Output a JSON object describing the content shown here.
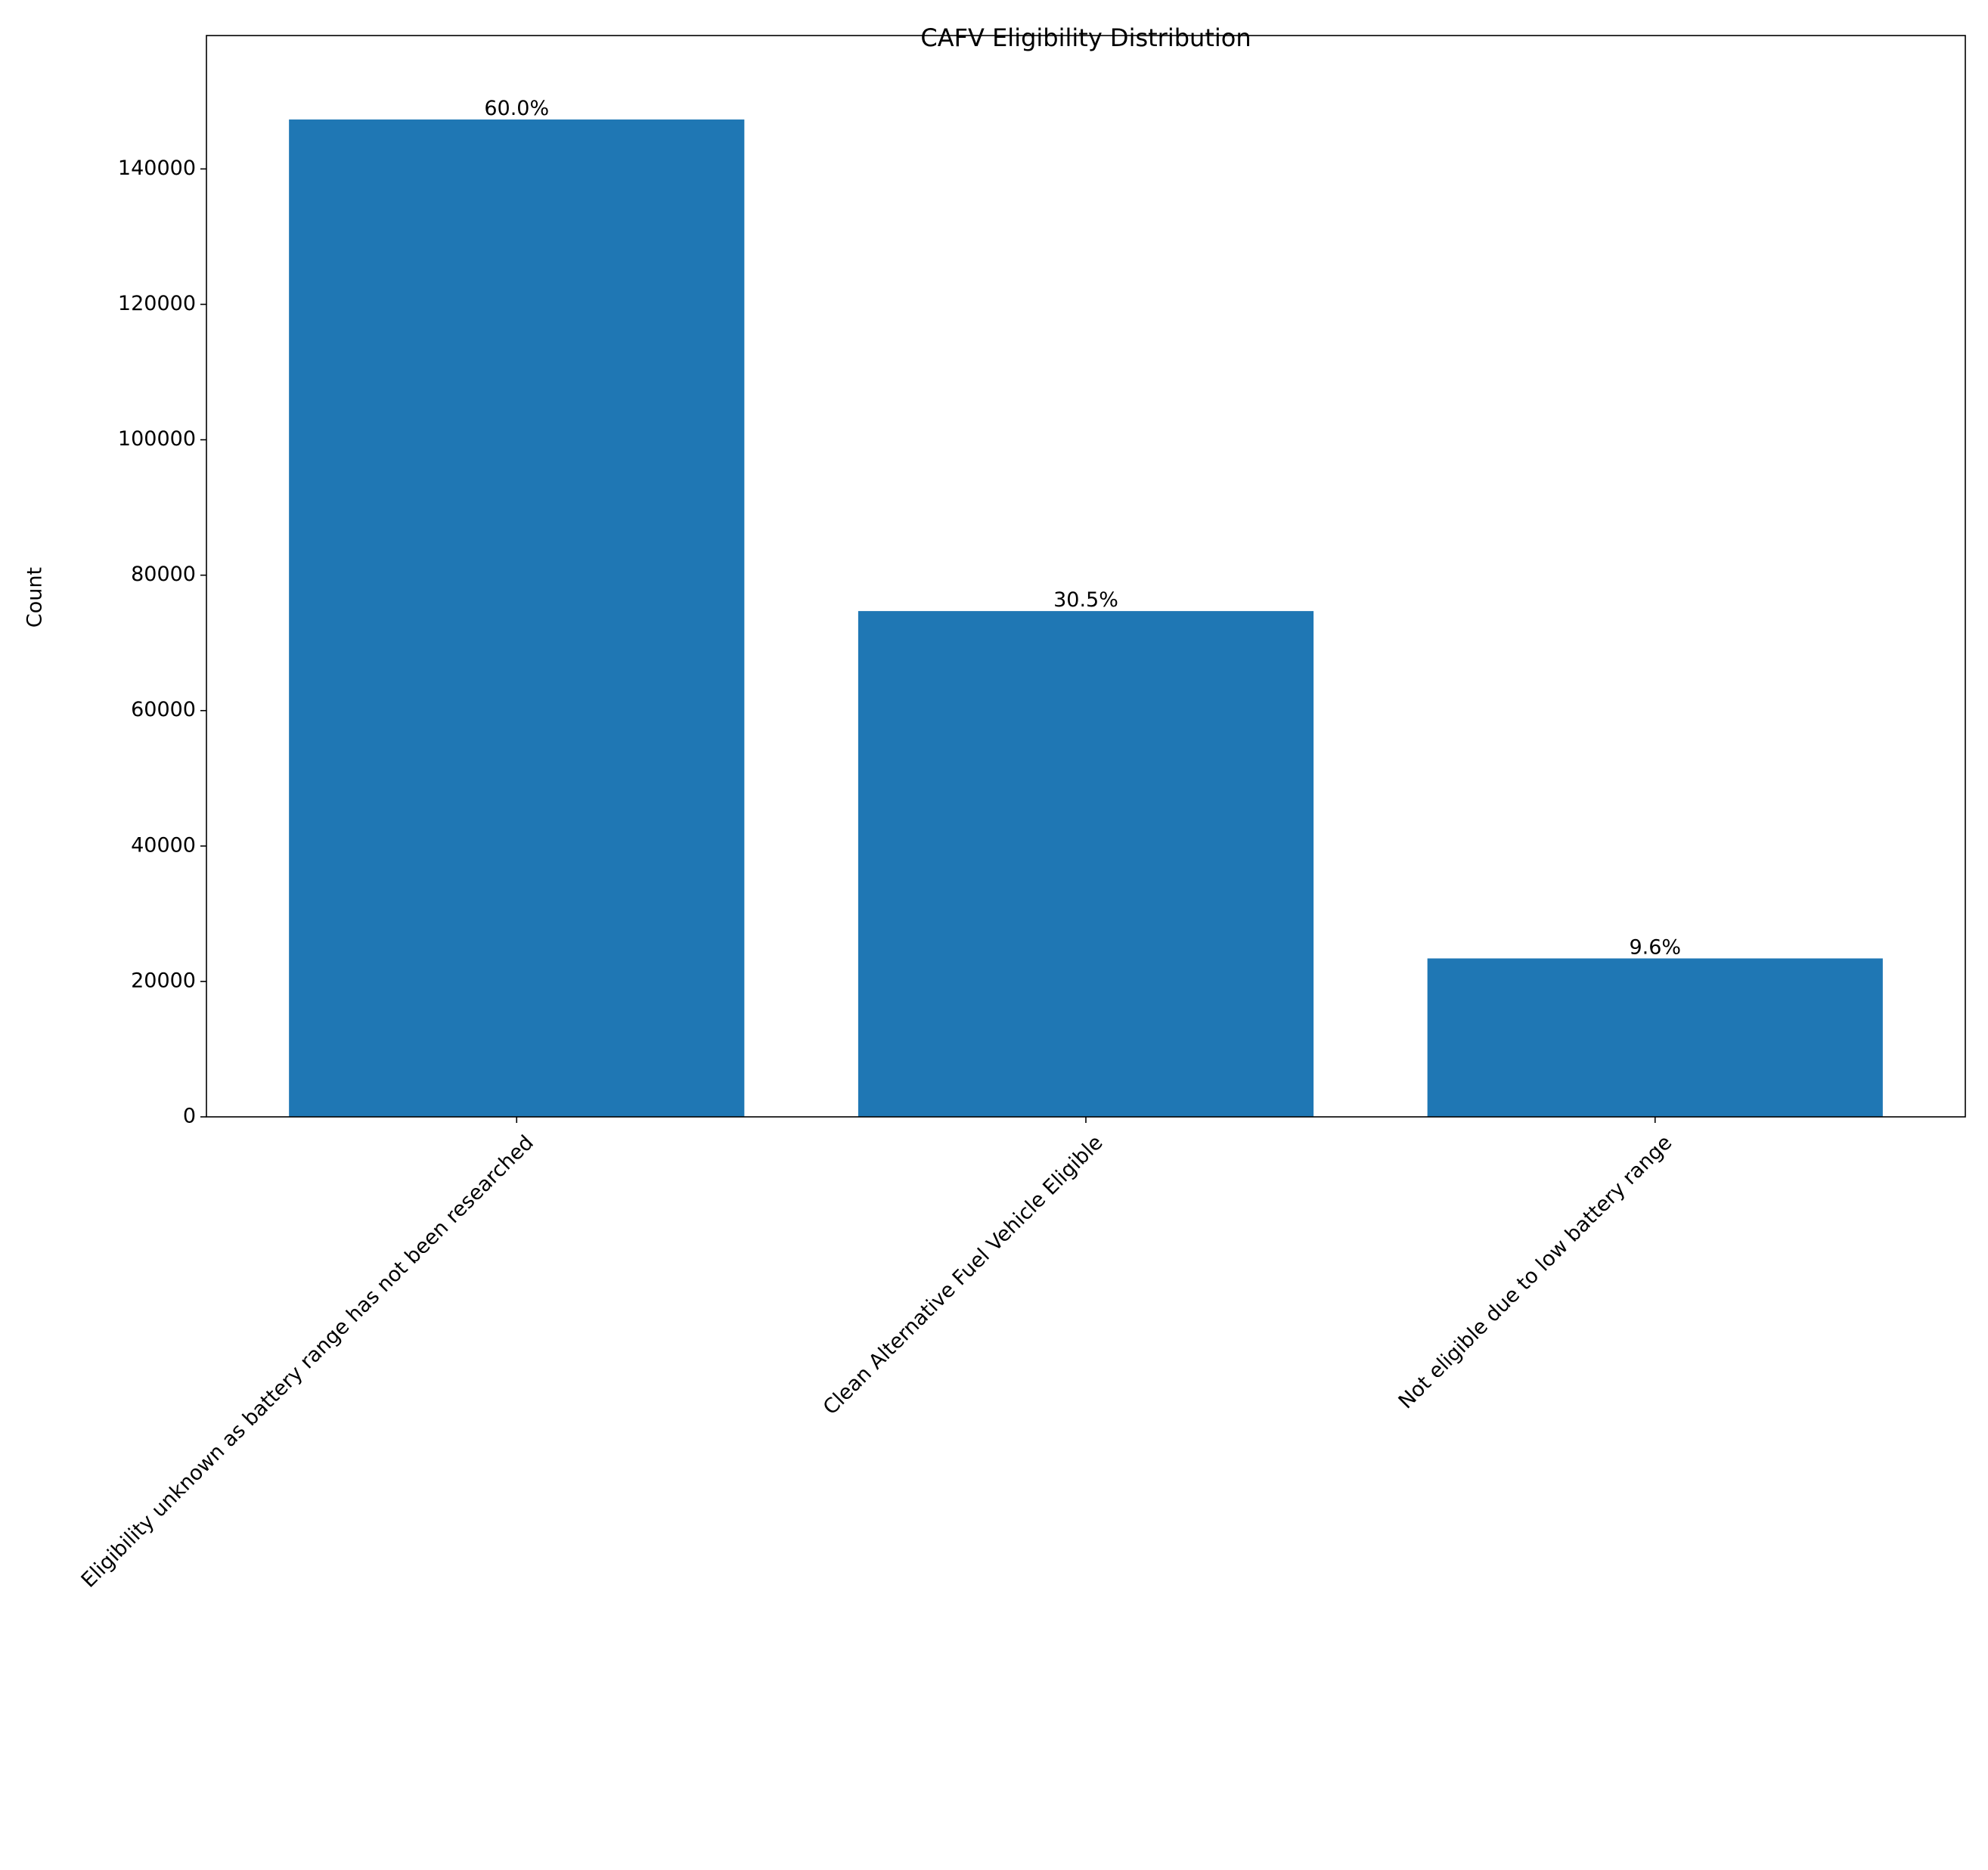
{
  "chart_data": {
    "type": "bar",
    "title": "CAFV Eligibility Distribution",
    "y_label": "Count",
    "categories": [
      "Eligibility unknown as battery range has not been researched",
      "Clean Alternative Fuel Vehicle Eligible",
      "Not eligible due to low battery range"
    ],
    "values": [
      147300,
      74700,
      23400
    ],
    "annotations": [
      "60.0%",
      "30.5%",
      "9.6%"
    ],
    "color": "#1f77b4",
    "ylim": [
      0,
      159700
    ],
    "yticks": [
      0,
      20000,
      40000,
      60000,
      80000,
      100000,
      120000,
      140000
    ],
    "grid": false
  }
}
